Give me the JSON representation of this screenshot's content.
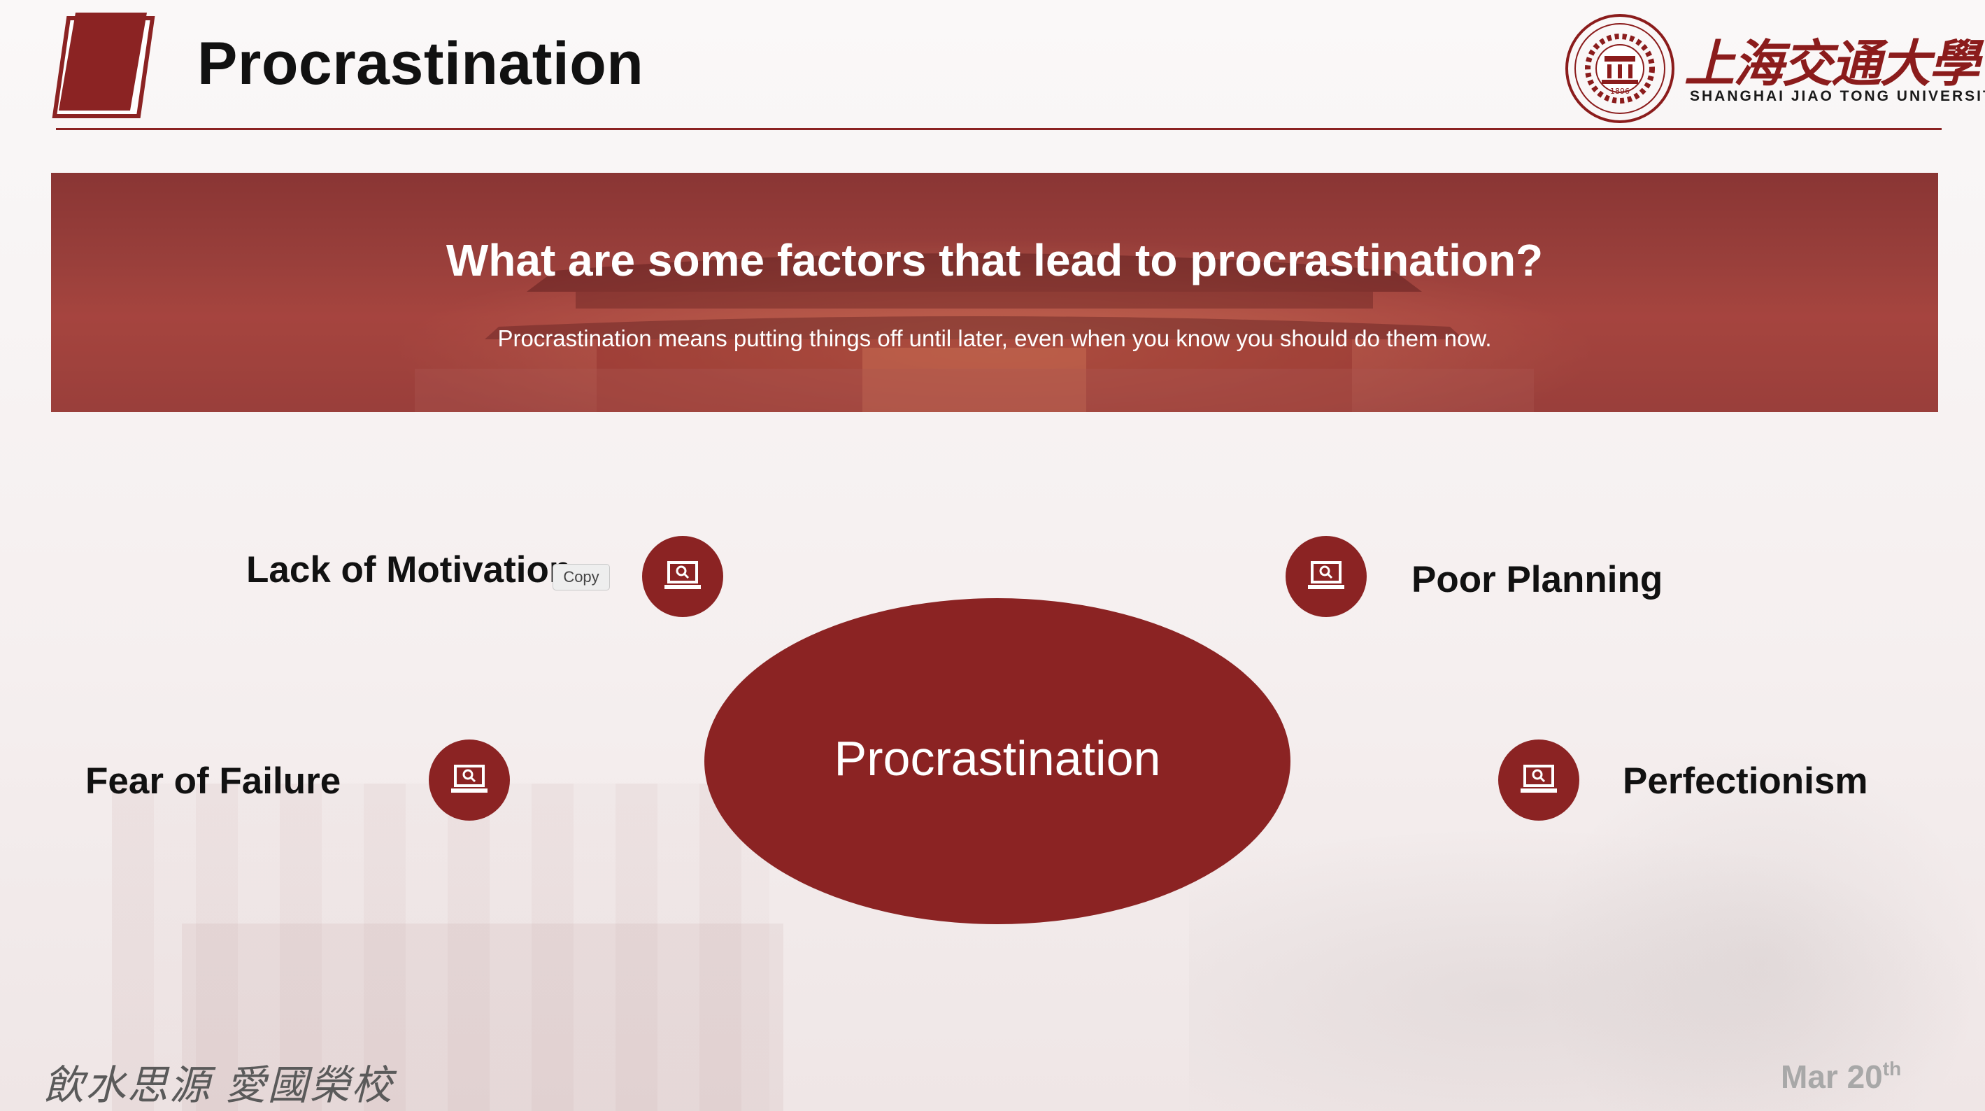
{
  "header": {
    "title": "Procrastination",
    "logo": {
      "chinese_name": "上海交通大學",
      "english_name": "SHANGHAI JIAO TONG UNIVERSITY",
      "seal_year": "1896"
    }
  },
  "banner": {
    "question": "What are some factors that lead to procrastination?",
    "subtitle": "Procrastination means putting things off until later, even when you know you should do them now."
  },
  "diagram": {
    "center_label": "Procrastination",
    "factors": [
      {
        "label": "Lack of Motivation",
        "icon": "laptop-search-icon"
      },
      {
        "label": "Poor Planning",
        "icon": "laptop-search-icon"
      },
      {
        "label": "Fear of Failure",
        "icon": "laptop-search-icon"
      },
      {
        "label": "Perfectionism",
        "icon": "laptop-search-icon"
      }
    ]
  },
  "tooltip": {
    "label": "Copy"
  },
  "footer": {
    "motto": "飲水思源 愛國榮校",
    "date_main": "Mar 20",
    "date_suffix": "th"
  },
  "colors": {
    "brand_red": "#8b2323",
    "text_dark": "#111111",
    "date_gray": "#a8a8a8"
  }
}
